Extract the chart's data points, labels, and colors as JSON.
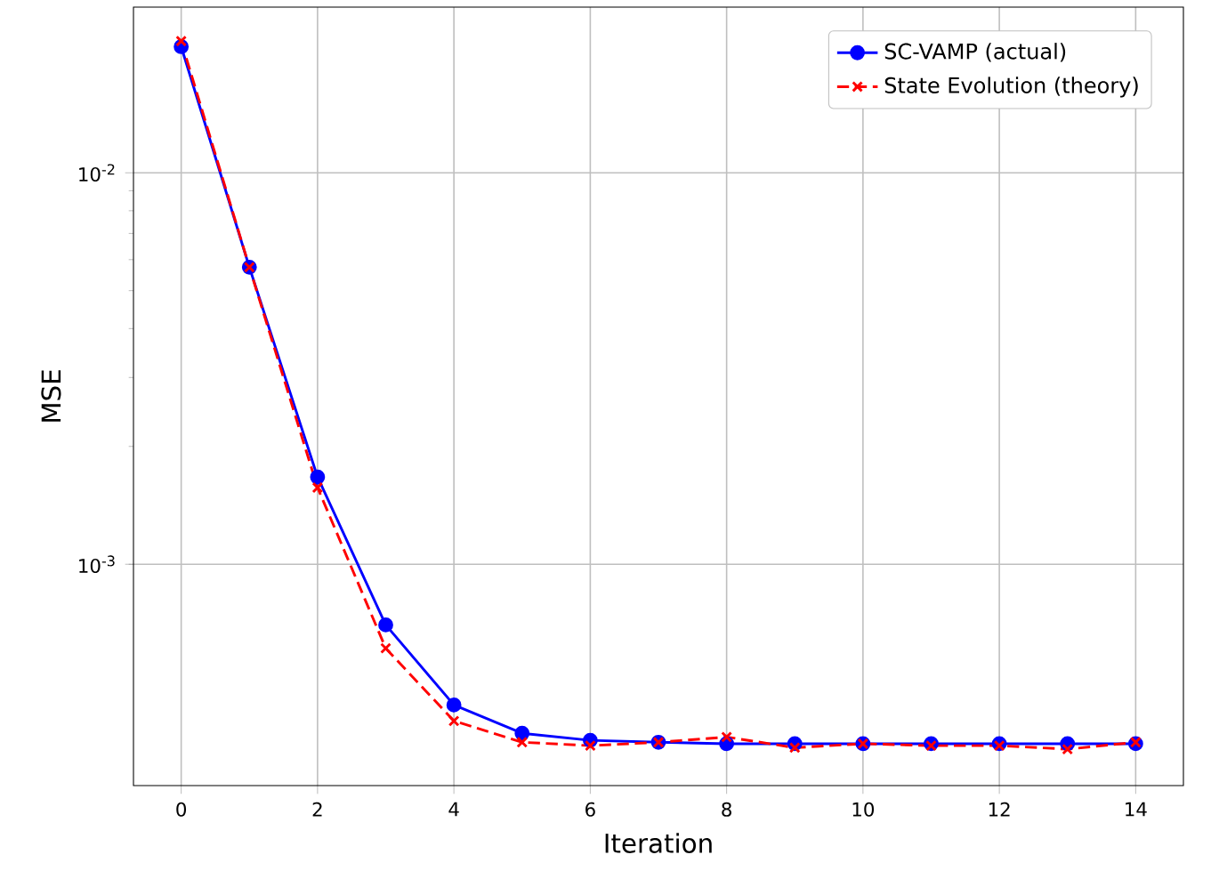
{
  "chart_data": {
    "type": "line",
    "xlabel": "Iteration",
    "ylabel": "MSE",
    "log": "y",
    "grid": true,
    "legend": "top right",
    "x": [
      0,
      1,
      2,
      3,
      4,
      5,
      6,
      7,
      8,
      9,
      10,
      11,
      12,
      13,
      14
    ],
    "xlim": [
      -0.7,
      14.7
    ],
    "xticks": [
      0,
      2,
      4,
      6,
      8,
      10,
      12,
      14
    ],
    "ylim": [
      0.000272,
      0.0265
    ],
    "yticks": [
      {
        "value": 0.001,
        "label": "10$^{-3}$"
      },
      {
        "value": 0.01,
        "label": "10$^{-2}$"
      }
    ],
    "series": [
      {
        "name": "SC-VAMP (actual)",
        "color": "#0000ff",
        "marker": "circle",
        "line_style": "solid",
        "values": [
          0.021,
          0.00574,
          0.00167,
          0.0007,
          0.000437,
          0.00037,
          0.000355,
          0.000351,
          0.000348,
          0.000348,
          0.000348,
          0.000348,
          0.000348,
          0.000348,
          0.000348
        ]
      },
      {
        "name": "State Evolution (theory)",
        "color": "#ff0000",
        "marker": "cross",
        "line_style": "dashed",
        "values": [
          0.0217,
          0.00574,
          0.00157,
          0.00061,
          0.000398,
          0.000351,
          0.000344,
          0.000351,
          0.000362,
          0.00034,
          0.000348,
          0.000344,
          0.000344,
          0.000337,
          0.000351
        ]
      }
    ]
  }
}
